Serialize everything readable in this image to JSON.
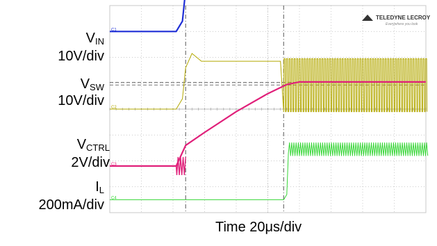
{
  "chart_data": {
    "type": "line",
    "title": "",
    "xlabel": "Time 20μs/div",
    "ylabel": "",
    "grid": true,
    "xlim": [
      0,
      200
    ],
    "x_unit": "μs",
    "channel_labels": [
      {
        "main": "V",
        "sub": "IN",
        "scale": "10V/div"
      },
      {
        "main": "V",
        "sub": "SW",
        "scale": "10V/div"
      },
      {
        "main": "V",
        "sub": "CTRL",
        "scale": "2V/div"
      },
      {
        "main": "I",
        "sub": "L",
        "scale": "200mA/div"
      }
    ],
    "markers": [
      {
        "name": "C1"
      },
      {
        "name": "C2"
      },
      {
        "name": "C3"
      },
      {
        "name": "C4"
      }
    ],
    "logo": "TELEDYNE LECROY",
    "logo_tagline": "Everywhere you look",
    "colors": {
      "vin": "#1f2fd6",
      "vsw": "#b3a800",
      "vctrl": "#e0207a",
      "il": "#36d636",
      "grid": "#b8b8b8",
      "cursor": "#555555"
    },
    "series": [
      {
        "name": "VIN",
        "channel": "C1",
        "color": "#1f2fd6",
        "points": [
          [
            0,
            3.0
          ],
          [
            42,
            3.0
          ],
          [
            46,
            3.4
          ],
          [
            48,
            4.6
          ],
          [
            52,
            5.3
          ],
          [
            58,
            5.05
          ],
          [
            80,
            5.1
          ],
          [
            120,
            5.07
          ],
          [
            150,
            5.0
          ],
          [
            170,
            5.12
          ],
          [
            200,
            5.08
          ]
        ]
      },
      {
        "name": "VSW",
        "channel": "C2",
        "color": "#b3a800",
        "switching_from_x": 110,
        "points": [
          [
            0,
            0.0
          ],
          [
            42,
            0.0
          ],
          [
            46,
            0.4
          ],
          [
            48,
            1.6
          ],
          [
            52,
            2.15
          ],
          [
            58,
            1.85
          ],
          [
            108,
            1.85
          ],
          [
            110,
            -0.1
          ]
        ]
      },
      {
        "name": "VCTRL",
        "channel": "C3",
        "color": "#e0207a",
        "points": [
          [
            0,
            -2.2
          ],
          [
            42,
            -2.2
          ],
          [
            48,
            -1.4
          ],
          [
            60,
            -0.9
          ],
          [
            80,
            -0.1
          ],
          [
            100,
            0.6
          ],
          [
            112,
            0.95
          ],
          [
            120,
            1.05
          ],
          [
            200,
            1.05
          ]
        ]
      },
      {
        "name": "IL",
        "channel": "C4",
        "color": "#36d636",
        "switching_from_x": 112,
        "points": [
          [
            0,
            -3.5
          ],
          [
            110,
            -3.5
          ],
          [
            112,
            -3.3
          ],
          [
            113,
            -1.7
          ]
        ]
      }
    ],
    "cursors_x": [
      48,
      110
    ]
  }
}
